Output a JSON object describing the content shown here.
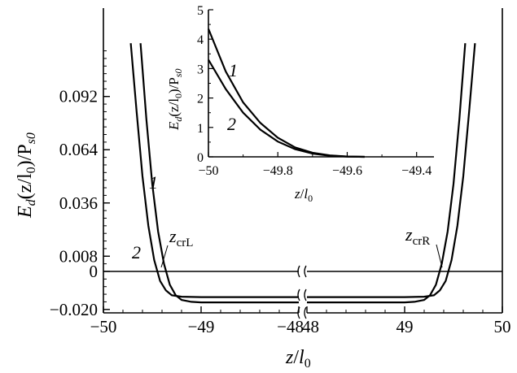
{
  "chart_data": [
    {
      "type": "line",
      "xlabel": "z/l0",
      "ylabel": "Ed(z/l0)/Ps0",
      "broken_x_axis": true,
      "x_segments": [
        [
          -50,
          -48
        ],
        [
          48,
          50
        ]
      ],
      "ylim": [
        -0.02,
        0.12
      ],
      "x_ticks": [
        "−50",
        "−49",
        "−48",
        "48",
        "49",
        "50"
      ],
      "y_ticks": [
        "−0.020",
        "0",
        "0.008",
        "0.036",
        "0.064",
        "0.092"
      ],
      "series": [
        {
          "name": "1",
          "x": [
            -49.72,
            -49.66,
            -49.6,
            -49.54,
            -49.48,
            -49.42,
            -49.36,
            -49.3,
            -49.2,
            -49.0,
            -48.5,
            -48.0,
            48.0,
            48.5,
            49.0,
            49.2,
            49.3,
            49.36,
            49.42,
            49.48,
            49.54,
            49.6,
            49.66,
            49.72
          ],
          "y": [
            0.12,
            0.084,
            0.05,
            0.024,
            0.006,
            -0.005,
            -0.01,
            -0.0125,
            -0.0133,
            -0.0135,
            -0.0135,
            -0.0135,
            -0.0135,
            -0.0135,
            -0.0135,
            -0.0133,
            -0.0125,
            -0.01,
            -0.005,
            0.006,
            0.024,
            0.05,
            0.084,
            0.12
          ]
        },
        {
          "name": "2",
          "x": [
            -49.62,
            -49.56,
            -49.5,
            -49.44,
            -49.38,
            -49.32,
            -49.26,
            -49.2,
            -49.1,
            -49.0,
            -48.5,
            -48.0,
            48.0,
            48.5,
            49.0,
            49.1,
            49.2,
            49.26,
            49.32,
            49.38,
            49.44,
            49.5,
            49.56,
            49.62
          ],
          "y": [
            0.12,
            0.08,
            0.046,
            0.021,
            0.004,
            -0.007,
            -0.0125,
            -0.015,
            -0.016,
            -0.0163,
            -0.0163,
            -0.0163,
            -0.0163,
            -0.0163,
            -0.0163,
            -0.016,
            -0.015,
            -0.0125,
            -0.007,
            0.004,
            0.021,
            0.046,
            0.08,
            0.12
          ]
        }
      ],
      "annotations": [
        "1",
        "2",
        "zcrL",
        "zcrR"
      ]
    },
    {
      "type": "line",
      "xlabel": "z/l0",
      "ylabel": "Ed(z/l0)/Ps0",
      "xlim": [
        -50,
        -49.35
      ],
      "ylim": [
        0,
        5
      ],
      "x_ticks": [
        "−50",
        "−49.8",
        "−49.6",
        "−49.4"
      ],
      "y_ticks": [
        "0",
        "1",
        "2",
        "3",
        "4",
        "5"
      ],
      "series": [
        {
          "name": "1",
          "x": [
            -50.0,
            -49.95,
            -49.9,
            -49.85,
            -49.8,
            -49.75,
            -49.7,
            -49.65,
            -49.6,
            -49.55
          ],
          "y": [
            4.35,
            2.9,
            1.85,
            1.15,
            0.65,
            0.32,
            0.14,
            0.05,
            0.01,
            0.0
          ]
        },
        {
          "name": "2",
          "x": [
            -50.0,
            -49.95,
            -49.9,
            -49.85,
            -49.8,
            -49.75,
            -49.7,
            -49.65,
            -49.6,
            -49.55
          ],
          "y": [
            3.3,
            2.3,
            1.5,
            0.92,
            0.52,
            0.26,
            0.11,
            0.04,
            0.008,
            0.0
          ]
        }
      ],
      "annotations": [
        "1",
        "2"
      ]
    }
  ],
  "text": {
    "main_xlabel_base": "z",
    "main_xlabel_slash": "/",
    "main_xlabel_l": "l",
    "main_xlabel_sub": "0",
    "ylabel_E": "E",
    "ylabel_d": "d",
    "ylabel_mid": "(z/l",
    "ylabel_0": "0",
    "ylabel_close": ")/P",
    "ylabel_s0": "s0",
    "crL_base": "z",
    "crL_sub": "crL",
    "crR_base": "z",
    "crR_sub": "crR",
    "curve1": "1",
    "curve2": "2"
  }
}
